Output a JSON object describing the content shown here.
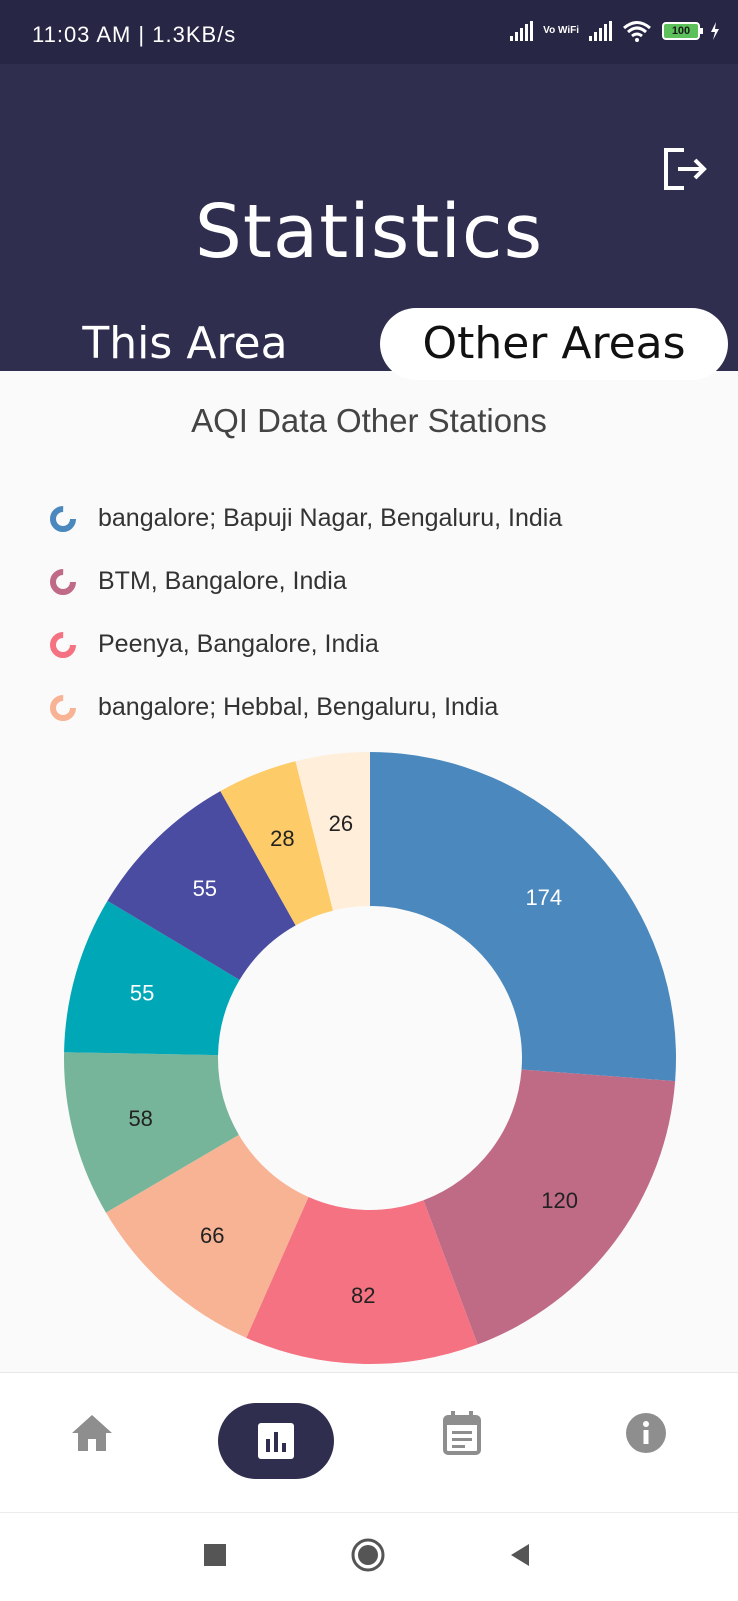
{
  "status_bar": {
    "time": "11:03 AM | 1.3KB/s",
    "wifi_label": "Vo WiFi",
    "battery": "100"
  },
  "header": {
    "title": "Statistics",
    "tabs": [
      {
        "label": "This Area",
        "selected": false
      },
      {
        "label": "Other Areas",
        "selected": true
      }
    ]
  },
  "content": {
    "title": "AQI Data Other Stations",
    "legend": [
      {
        "label": "bangalore; Bapuji Nagar, Bengaluru, India",
        "color": "#4a88bd"
      },
      {
        "label": "BTM, Bangalore, India",
        "color": "#c06b85"
      },
      {
        "label": "Peenya, Bangalore, India",
        "color": "#f47281"
      },
      {
        "label": "bangalore; Hebbal, Bengaluru, India",
        "color": "#f8b394"
      }
    ]
  },
  "chart_data": {
    "type": "pie",
    "donut": true,
    "values": [
      174,
      120,
      82,
      66,
      58,
      55,
      55,
      28,
      26
    ],
    "colors": [
      "#4a88bd",
      "#c06b85",
      "#f47281",
      "#f8b394",
      "#77b59b",
      "#00a7b7",
      "#4a4ca2",
      "#fdcb67",
      "#feeeda"
    ],
    "label_colors": [
      "#ffffff",
      "#222222",
      "#222222",
      "#222222",
      "#222222",
      "#ffffff",
      "#ffffff",
      "#222222",
      "#222222"
    ]
  },
  "bottom_nav": {
    "items": [
      "home-icon",
      "bar-chart-icon",
      "calendar-icon",
      "info-icon"
    ],
    "selected": "bar-chart-icon",
    "accent": "#2f2e4f",
    "inactive": "#8e8e8e"
  }
}
